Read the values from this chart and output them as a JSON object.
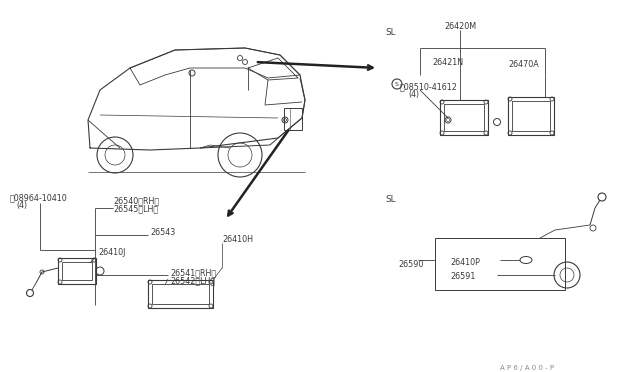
{
  "bg_color": "#ffffff",
  "fig_width": 6.4,
  "fig_height": 3.72,
  "dpi": 100,
  "watermark": "A P 6 / A 0 0 - P",
  "labels": {
    "N_08964": "ⓝ08964-10410",
    "N_08964_b": "(4)",
    "26540_RH": "26540（RH）",
    "26545_LH": "26545（LH）",
    "26543": "26543",
    "26410J": "26410J",
    "26541_RH": "26541（RH）",
    "26542_LH": "26542（LH）",
    "26410H": "26410H",
    "SL_top": "SL",
    "SL_bot": "SL",
    "26420M": "26420M",
    "26421N": "26421N",
    "26470A": "26470A",
    "S_08510": "Ⓜ08510-41612",
    "S_08510_b": "(4)",
    "26590": "26590",
    "26410P": "26410P",
    "26591": "26591"
  },
  "lc": "#3a3a3a",
  "tc": "#3a3a3a",
  "fs": 5.8
}
